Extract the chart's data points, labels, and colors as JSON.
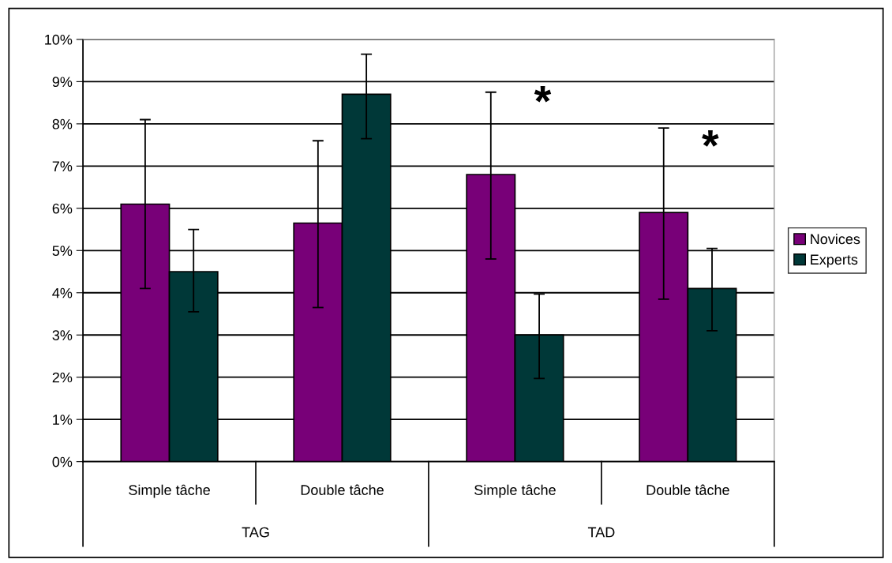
{
  "chart_data": {
    "type": "bar",
    "categories": [
      "Simple tâche",
      "Double tâche",
      "Simple tâche",
      "Double tâche"
    ],
    "series": [
      {
        "name": "Novices",
        "color": "#780078",
        "values": [
          6.1,
          5.65,
          6.8,
          5.9
        ],
        "errors": [
          [
            4.1,
            8.1
          ],
          [
            3.65,
            7.6
          ],
          [
            4.8,
            8.75
          ],
          [
            3.85,
            7.9
          ]
        ]
      },
      {
        "name": "Experts",
        "color": "#003838",
        "values": [
          4.5,
          8.7,
          3.0,
          4.1
        ],
        "errors": [
          [
            3.55,
            5.5
          ],
          [
            7.65,
            9.65
          ],
          [
            1.97,
            3.97
          ],
          [
            3.1,
            5.05
          ]
        ]
      }
    ],
    "ylim": [
      0,
      10
    ],
    "yticks": [
      {
        "value": 0,
        "label": "0%"
      },
      {
        "value": 1,
        "label": "1%"
      },
      {
        "value": 2,
        "label": "2%"
      },
      {
        "value": 3,
        "label": "3%"
      },
      {
        "value": 4,
        "label": "4%"
      },
      {
        "value": 5,
        "label": "5%"
      },
      {
        "value": 6,
        "label": "6%"
      },
      {
        "value": 7,
        "label": "7%"
      },
      {
        "value": 8,
        "label": "8%"
      },
      {
        "value": 9,
        "label": "9%"
      },
      {
        "value": 10,
        "label": "10%"
      }
    ],
    "annotations": [
      "TAG",
      "TAD",
      "*",
      "*"
    ],
    "grid": "y",
    "legend": "right"
  }
}
